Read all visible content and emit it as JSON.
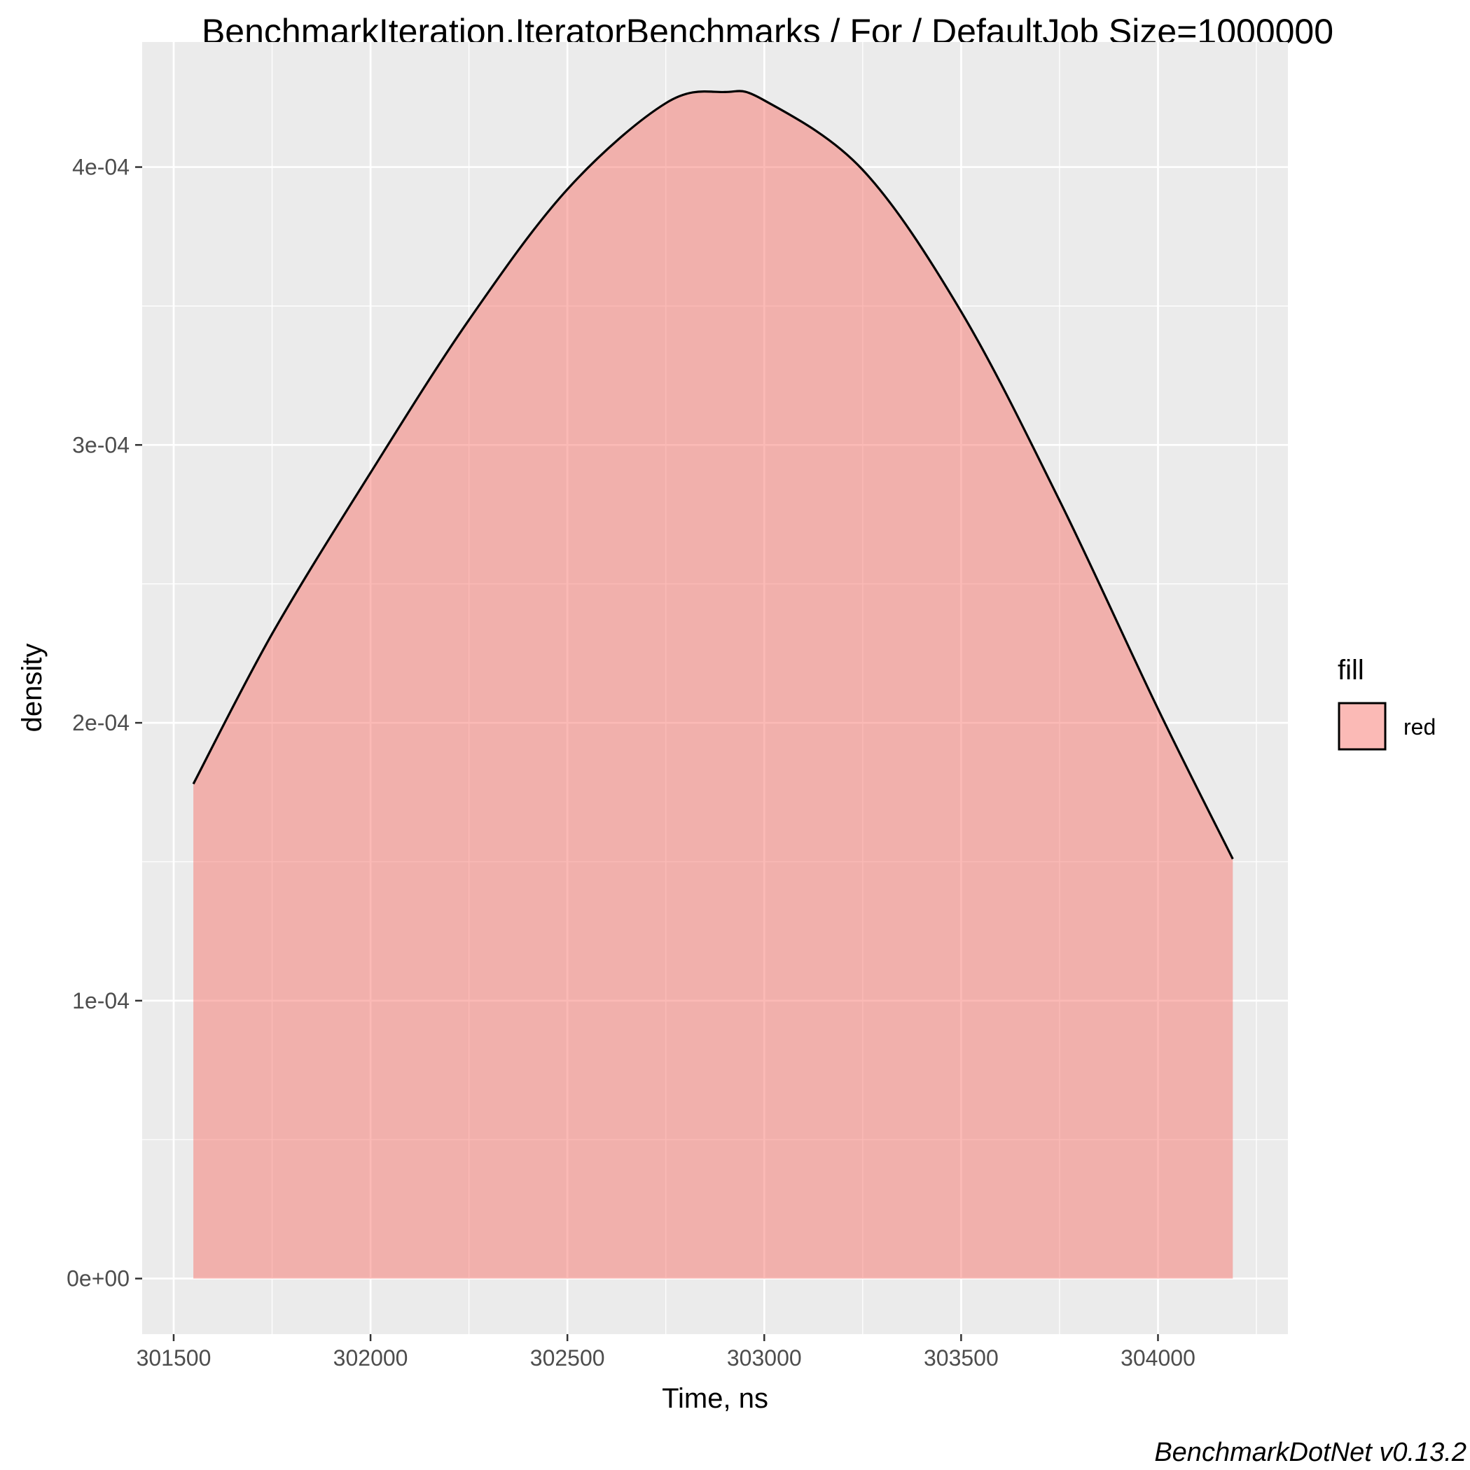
{
  "chart_data": {
    "type": "area",
    "title": "BenchmarkIteration.IteratorBenchmarks / For / DefaultJob Size=1000000",
    "xlabel": "Time, ns",
    "ylabel": "density",
    "caption": "BenchmarkDotNet v0.13.2",
    "xlim": [
      301420,
      304330
    ],
    "ylim": [
      -2e-05,
      0.000445
    ],
    "x_ticks": [
      301500,
      302000,
      302500,
      303000,
      303500,
      304000
    ],
    "x_tick_labels": [
      "301500",
      "302000",
      "302500",
      "303000",
      "303500",
      "304000"
    ],
    "y_ticks": [
      0,
      0.0001,
      0.0002,
      0.0003,
      0.0004
    ],
    "y_tick_labels": [
      "0e+00",
      "1e-04",
      "2e-04",
      "3e-04",
      "4e-04"
    ],
    "grid": true,
    "legend": {
      "title": "fill",
      "position": "right",
      "entries": [
        {
          "label": "red",
          "color": "#f8766d"
        }
      ]
    },
    "series": [
      {
        "fill_color": "#f8766d",
        "fill_alpha": 0.5,
        "line_color": "#000000",
        "x": [
          301550,
          301750,
          302000,
          302250,
          302500,
          302750,
          302900,
          303000,
          303250,
          303500,
          303750,
          304000,
          304190
        ],
        "y": [
          0.000178,
          0.000232,
          0.00029,
          0.000345,
          0.000392,
          0.000423,
          0.000427,
          0.000424,
          0.000399,
          0.000348,
          0.00028,
          0.000205,
          0.000151
        ]
      }
    ]
  }
}
